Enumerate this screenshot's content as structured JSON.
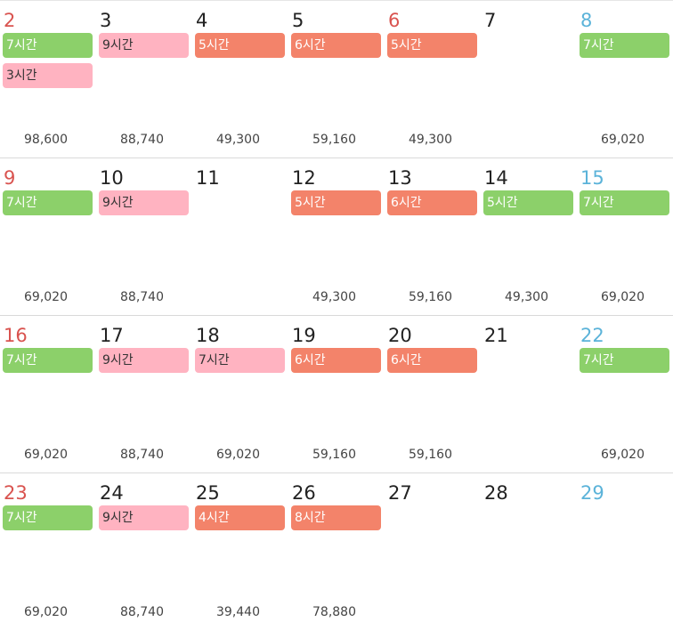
{
  "calendar": {
    "weeks": [
      {
        "days": [
          {
            "number": "2",
            "kind": "holiday",
            "shifts": [
              {
                "label": "7시간",
                "color": "green"
              },
              {
                "label": "3시간",
                "color": "pink"
              }
            ],
            "wage": "98,600"
          },
          {
            "number": "3",
            "kind": "weekday",
            "shifts": [
              {
                "label": "9시간",
                "color": "pink"
              }
            ],
            "wage": "88,740"
          },
          {
            "number": "4",
            "kind": "weekday",
            "shifts": [
              {
                "label": "5시간",
                "color": "coral"
              }
            ],
            "wage": "49,300"
          },
          {
            "number": "5",
            "kind": "weekday",
            "shifts": [
              {
                "label": "6시간",
                "color": "coral"
              }
            ],
            "wage": "59,160"
          },
          {
            "number": "6",
            "kind": "holiday",
            "shifts": [
              {
                "label": "5시간",
                "color": "coral"
              }
            ],
            "wage": "49,300"
          },
          {
            "number": "7",
            "kind": "weekday",
            "shifts": [],
            "wage": ""
          },
          {
            "number": "8",
            "kind": "saturday",
            "shifts": [
              {
                "label": "7시간",
                "color": "green"
              }
            ],
            "wage": "69,020"
          }
        ]
      },
      {
        "days": [
          {
            "number": "9",
            "kind": "holiday",
            "shifts": [
              {
                "label": "7시간",
                "color": "green"
              }
            ],
            "wage": "69,020"
          },
          {
            "number": "10",
            "kind": "weekday",
            "shifts": [
              {
                "label": "9시간",
                "color": "pink"
              }
            ],
            "wage": "88,740"
          },
          {
            "number": "11",
            "kind": "weekday",
            "shifts": [],
            "wage": ""
          },
          {
            "number": "12",
            "kind": "weekday",
            "shifts": [
              {
                "label": "5시간",
                "color": "coral"
              }
            ],
            "wage": "49,300"
          },
          {
            "number": "13",
            "kind": "weekday",
            "shifts": [
              {
                "label": "6시간",
                "color": "coral"
              }
            ],
            "wage": "59,160"
          },
          {
            "number": "14",
            "kind": "weekday",
            "shifts": [
              {
                "label": "5시간",
                "color": "green"
              }
            ],
            "wage": "49,300"
          },
          {
            "number": "15",
            "kind": "saturday",
            "shifts": [
              {
                "label": "7시간",
                "color": "green"
              }
            ],
            "wage": "69,020"
          }
        ]
      },
      {
        "days": [
          {
            "number": "16",
            "kind": "holiday",
            "shifts": [
              {
                "label": "7시간",
                "color": "green"
              }
            ],
            "wage": "69,020"
          },
          {
            "number": "17",
            "kind": "weekday",
            "shifts": [
              {
                "label": "9시간",
                "color": "pink"
              }
            ],
            "wage": "88,740"
          },
          {
            "number": "18",
            "kind": "weekday",
            "shifts": [
              {
                "label": "7시간",
                "color": "pink"
              }
            ],
            "wage": "69,020"
          },
          {
            "number": "19",
            "kind": "weekday",
            "shifts": [
              {
                "label": "6시간",
                "color": "coral"
              }
            ],
            "wage": "59,160"
          },
          {
            "number": "20",
            "kind": "weekday",
            "shifts": [
              {
                "label": "6시간",
                "color": "coral"
              }
            ],
            "wage": "59,160"
          },
          {
            "number": "21",
            "kind": "weekday",
            "shifts": [],
            "wage": ""
          },
          {
            "number": "22",
            "kind": "saturday",
            "shifts": [
              {
                "label": "7시간",
                "color": "green"
              }
            ],
            "wage": "69,020"
          }
        ]
      },
      {
        "days": [
          {
            "number": "23",
            "kind": "holiday",
            "shifts": [
              {
                "label": "7시간",
                "color": "green"
              }
            ],
            "wage": "69,020"
          },
          {
            "number": "24",
            "kind": "weekday",
            "shifts": [
              {
                "label": "9시간",
                "color": "pink"
              }
            ],
            "wage": "88,740"
          },
          {
            "number": "25",
            "kind": "weekday",
            "shifts": [
              {
                "label": "4시간",
                "color": "coral"
              }
            ],
            "wage": "39,440"
          },
          {
            "number": "26",
            "kind": "weekday",
            "shifts": [
              {
                "label": "8시간",
                "color": "coral"
              }
            ],
            "wage": "78,880"
          },
          {
            "number": "27",
            "kind": "weekday",
            "shifts": [],
            "wage": ""
          },
          {
            "number": "28",
            "kind": "weekday",
            "shifts": [],
            "wage": ""
          },
          {
            "number": "29",
            "kind": "saturday",
            "shifts": [],
            "wage": ""
          }
        ]
      }
    ]
  },
  "colors": {
    "green": "#8cd06a",
    "pink": "#ffb3c1",
    "coral": "#f3836a",
    "holiday": "#d9534f",
    "saturday": "#5bb3d9",
    "weekday": "#222222"
  }
}
